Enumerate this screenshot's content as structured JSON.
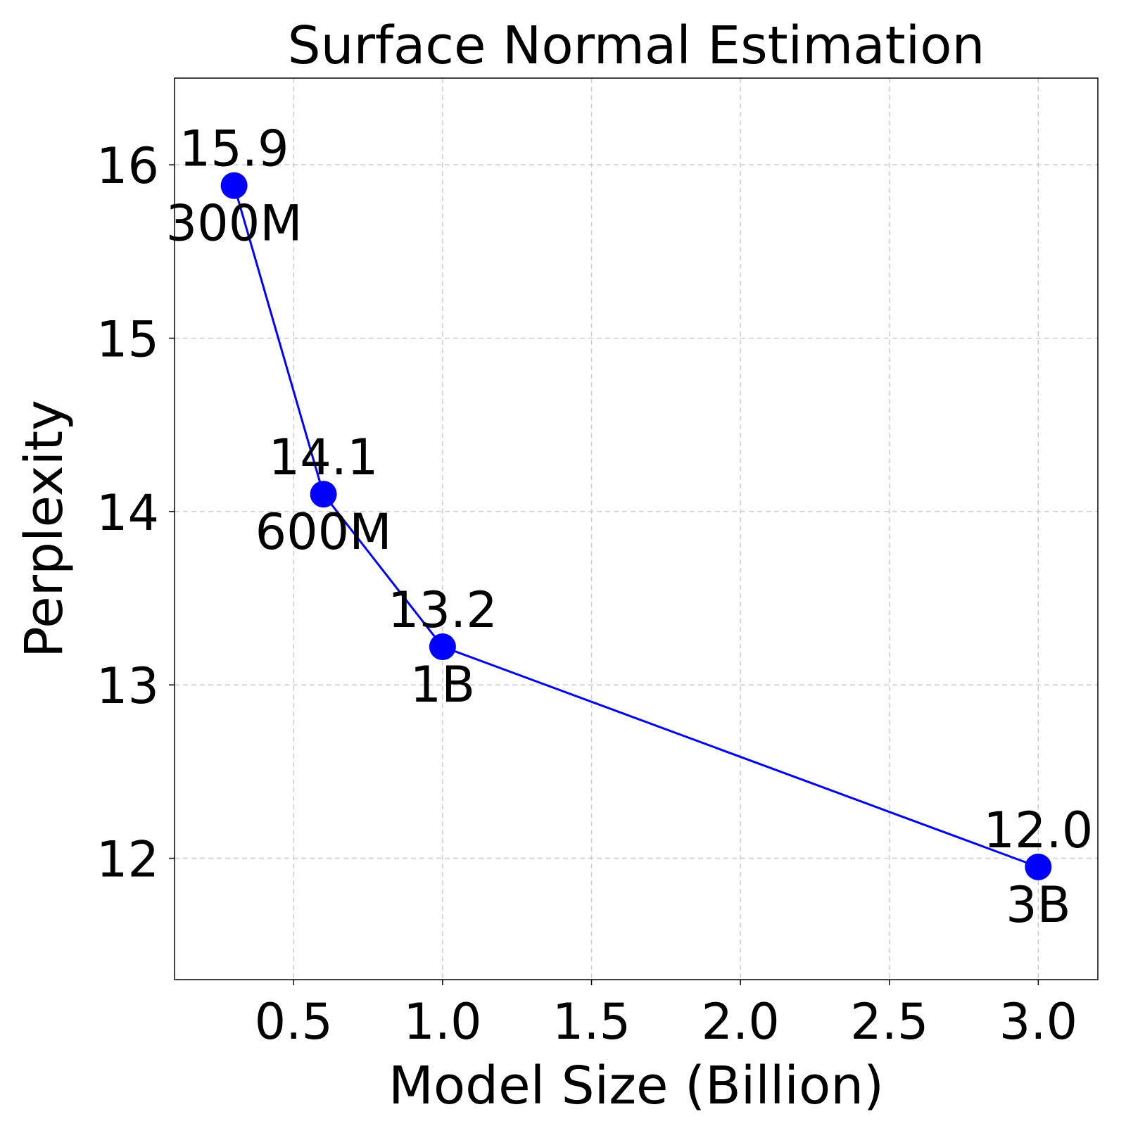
{
  "chart_data": {
    "type": "line",
    "title": "Surface Normal Estimation",
    "xlabel": "Model Size (Billion)",
    "ylabel": "Perplexity",
    "xlim": [
      0.1,
      3.2
    ],
    "ylim": [
      11.3,
      16.5
    ],
    "xticks": [
      0.5,
      1.0,
      1.5,
      2.0,
      2.5,
      3.0
    ],
    "xtick_labels": [
      "0.5",
      "1.0",
      "1.5",
      "2.0",
      "2.5",
      "3.0"
    ],
    "yticks": [
      12,
      13,
      14,
      15,
      16
    ],
    "ytick_labels": [
      "12",
      "13",
      "14",
      "15",
      "16"
    ],
    "grid": true,
    "series": [
      {
        "color": "#0000ff",
        "points": [
          {
            "x": 0.3,
            "y": 15.88,
            "value_label": "15.9",
            "name_label": "300M"
          },
          {
            "x": 0.6,
            "y": 14.1,
            "value_label": "14.1",
            "name_label": "600M"
          },
          {
            "x": 1.0,
            "y": 13.22,
            "value_label": "13.2",
            "name_label": "1B"
          },
          {
            "x": 3.0,
            "y": 11.95,
            "value_label": "12.0",
            "name_label": "3B"
          }
        ]
      }
    ]
  }
}
